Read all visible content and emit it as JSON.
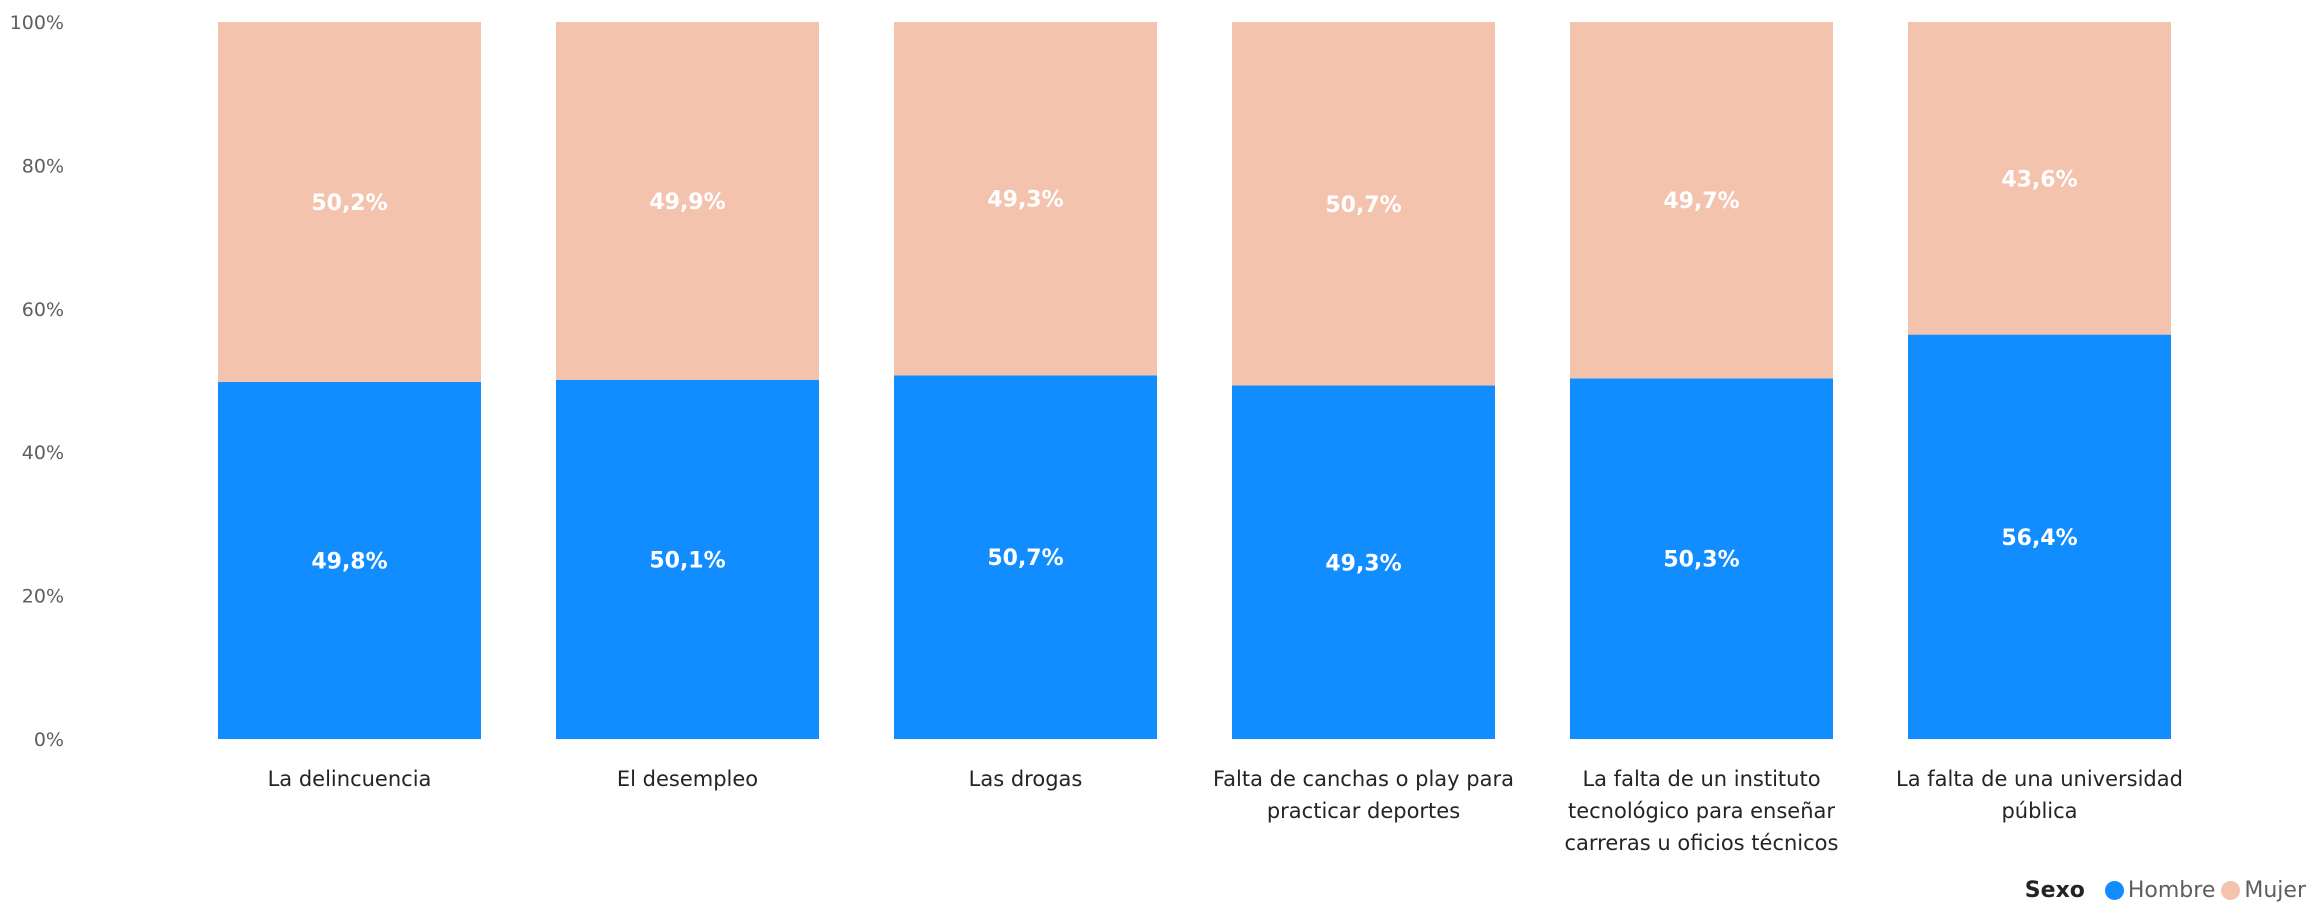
{
  "chart_data": {
    "type": "bar",
    "stacked": "percent",
    "categories": [
      [
        "La delincuencia"
      ],
      [
        "El desempleo"
      ],
      [
        "Las drogas"
      ],
      [
        "Falta de canchas o play para",
        "practicar deportes"
      ],
      [
        "La falta de un instituto",
        "tecnológico para enseñar",
        "carreras u oficios técnicos"
      ],
      [
        "La falta de una universidad",
        "pública"
      ]
    ],
    "series": [
      {
        "name": "Hombre",
        "color": "#118dff",
        "values": [
          49.8,
          50.1,
          50.7,
          49.3,
          50.3,
          56.4
        ],
        "labels": [
          "49,8%",
          "50,1%",
          "50,7%",
          "49,3%",
          "50,3%",
          "56,4%"
        ]
      },
      {
        "name": "Mujer",
        "color": "#f4c3ae",
        "values": [
          50.2,
          49.9,
          49.3,
          50.7,
          49.7,
          43.6
        ],
        "labels": [
          "50,2%",
          "49,9%",
          "49,3%",
          "50,7%",
          "49,7%",
          "43,6%"
        ]
      }
    ],
    "ylim": [
      0,
      100
    ],
    "yticks": [
      "0%",
      "20%",
      "40%",
      "60%",
      "80%",
      "100%"
    ],
    "grid": false,
    "legend": {
      "title": "Sexo",
      "position": "bottom-right"
    }
  }
}
